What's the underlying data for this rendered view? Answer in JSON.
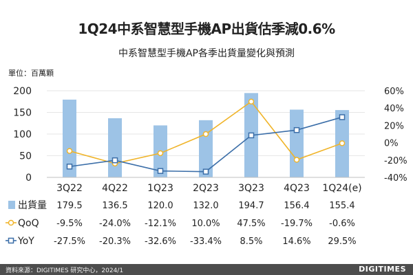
{
  "title": "1Q24中系智慧型手機AP出貨估季減0.6%",
  "subtitle": "中系智慧型手機AP各季出貨量變化與預測",
  "unit_label": "單位：百萬顆",
  "source": "資料來源：DIGITIMES 研究中心，2024/1",
  "brand": "DIGITIMES",
  "colors": {
    "bar": "#9dc3e6",
    "qoq": "#f0b429",
    "yoy": "#3b6ea8",
    "grid": "#e6e6e6"
  },
  "chart_data": {
    "type": "bar",
    "categories": [
      "3Q22",
      "4Q22",
      "1Q23",
      "2Q23",
      "3Q23",
      "4Q23",
      "1Q24(e)"
    ],
    "ylim": [
      0,
      200
    ],
    "yticks": [
      0,
      50,
      100,
      150,
      200
    ],
    "y2lim": [
      -40,
      60
    ],
    "y2ticks": [
      "60%",
      "40%",
      "20%",
      "0%",
      "-20%",
      "-40%"
    ],
    "y2tick_values": [
      60,
      40,
      20,
      0,
      -20,
      -40
    ],
    "grid": true,
    "series": [
      {
        "name": "出貨量",
        "type": "bar",
        "axis": "left",
        "values": [
          179.5,
          136.5,
          120.0,
          132.0,
          194.7,
          156.4,
          155.4
        ],
        "labels": [
          "179.5",
          "136.5",
          "120.0",
          "132.0",
          "194.7",
          "156.4",
          "155.4"
        ]
      },
      {
        "name": "QoQ",
        "type": "line",
        "axis": "right",
        "marker": "circle",
        "values": [
          -9.5,
          -24.0,
          -12.1,
          10.0,
          47.5,
          -19.7,
          -0.6
        ],
        "labels": [
          "-9.5%",
          "-24.0%",
          "-12.1%",
          "10.0%",
          "47.5%",
          "-19.7%",
          "-0.6%"
        ]
      },
      {
        "name": "YoY",
        "type": "line",
        "axis": "right",
        "marker": "square",
        "values": [
          -27.5,
          -20.3,
          -32.6,
          -33.4,
          8.5,
          14.6,
          29.5
        ],
        "labels": [
          "-27.5%",
          "-20.3%",
          "-32.6%",
          "-33.4%",
          "8.5%",
          "14.6%",
          "29.5%"
        ]
      }
    ]
  }
}
